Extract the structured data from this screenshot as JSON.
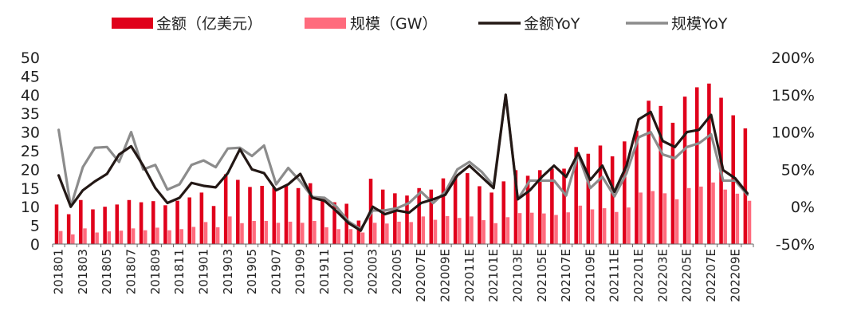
{
  "chart_data": {
    "type": "bar",
    "legend": [
      {
        "label": "金额（亿美元）",
        "kind": "bar",
        "color": "#e0001b"
      },
      {
        "label": "规模（GW）",
        "kind": "bar",
        "color": "#ff6b7d"
      },
      {
        "label": "金额YoY",
        "kind": "line",
        "color": "#231815"
      },
      {
        "label": "规模YoY",
        "kind": "line",
        "color": "#8c8c8c"
      }
    ],
    "legend_position": "top",
    "left_axis": {
      "ylim": [
        0,
        50
      ],
      "ticks": [
        "0",
        "5",
        "10",
        "15",
        "20",
        "25",
        "30",
        "35",
        "40",
        "45",
        "50"
      ]
    },
    "right_axis": {
      "ylim": [
        -50,
        200
      ],
      "ticks": [
        "-50%",
        "0%",
        "50%",
        "100%",
        "150%",
        "200%"
      ]
    },
    "x_tick_labels": [
      "201801",
      "201803",
      "201805",
      "201807",
      "201809",
      "201811",
      "201901",
      "201903",
      "201905",
      "201907",
      "201909",
      "201911",
      "202001",
      "202003",
      "202005",
      "202007E",
      "202009E",
      "202011E",
      "202101E",
      "202103E",
      "202105E",
      "202107E",
      "202109E",
      "202111E",
      "202201E",
      "202203E",
      "202205E",
      "202207E",
      "202209E"
    ],
    "categories": [
      "201801",
      "201802",
      "201803",
      "201804",
      "201805",
      "201806",
      "201807",
      "201808",
      "201809",
      "201810",
      "201811",
      "201812",
      "201901",
      "201902",
      "201903",
      "201904",
      "201905",
      "201906",
      "201907",
      "201908",
      "201909",
      "201910",
      "201911",
      "201912",
      "202001",
      "202002",
      "202003",
      "202004",
      "202005",
      "202006",
      "202007E",
      "202008E",
      "202009E",
      "202010E",
      "202011E",
      "202012E",
      "202101E",
      "202102E",
      "202103E",
      "202104E",
      "202105E",
      "202106E",
      "202107E",
      "202108E",
      "202109E",
      "202110E",
      "202111E",
      "202112E",
      "202201E",
      "202202E",
      "202203E",
      "202204E",
      "202205E",
      "202206E",
      "202207E",
      "202208E",
      "202209E",
      "202210E"
    ],
    "series": [
      {
        "name": "金额（亿美元）",
        "axis": "left",
        "values": [
          10.6,
          8,
          11.8,
          9.3,
          10,
          10.6,
          11.8,
          11.2,
          11.5,
          10.4,
          11.6,
          12.5,
          13.8,
          10.2,
          18.7,
          17.2,
          15.3,
          15.6,
          15.2,
          15.8,
          15,
          16.3,
          12.5,
          11.2,
          10.8,
          6.3,
          17.5,
          14.6,
          13.6,
          13,
          15,
          14.6,
          17.6,
          18.2,
          19,
          15.5,
          13.8,
          16.8,
          19.8,
          18.3,
          19.8,
          20.2,
          20.2,
          26,
          24.2,
          26.4,
          23.5,
          27.5,
          30.4,
          38.4,
          37,
          32.5,
          39.5,
          42,
          43,
          39.2,
          34.5,
          31
        ]
      },
      {
        "name": "规模（GW）",
        "axis": "left",
        "values": [
          3.5,
          2.6,
          4.2,
          3.1,
          3.4,
          3.6,
          4.2,
          3.7,
          4.4,
          3.7,
          4,
          4.6,
          5.9,
          4.5,
          7.4,
          5.6,
          6.2,
          6.2,
          5.7,
          6,
          5.7,
          6.2,
          4.5,
          4,
          4,
          3.1,
          5.7,
          5.5,
          6,
          5.9,
          7.4,
          6.5,
          7.5,
          7,
          7.4,
          6.4,
          5.6,
          7.2,
          8.3,
          8.4,
          8.2,
          7.8,
          8.5,
          10.3,
          9.3,
          9.6,
          8.6,
          9.8,
          13.8,
          14.2,
          13.6,
          12,
          15,
          15.4,
          16.5,
          14.6,
          13.5,
          11.6
        ]
      },
      {
        "name": "金额YoY",
        "axis": "right",
        "values": [
          42,
          0,
          22,
          34,
          44,
          70,
          81,
          55,
          25,
          5,
          12,
          32,
          28,
          26,
          45,
          77,
          50,
          45,
          22,
          30,
          44,
          12,
          8,
          -6,
          -22,
          -32,
          0,
          -10,
          -5,
          -8,
          5,
          10,
          16,
          42,
          55,
          40,
          25,
          150,
          10,
          22,
          40,
          55,
          40,
          72,
          36,
          55,
          20,
          55,
          117,
          127,
          88,
          80,
          100,
          103,
          123,
          49,
          38,
          18
        ]
      },
      {
        "name": "规模YoY",
        "axis": "right",
        "values": [
          103,
          0,
          53,
          79,
          80,
          60,
          100,
          50,
          56,
          23,
          30,
          56,
          62,
          53,
          78,
          79,
          68,
          82,
          30,
          52,
          34,
          13,
          12,
          0,
          -20,
          -30,
          -5,
          -5,
          -2,
          5,
          20,
          5,
          20,
          50,
          60,
          47,
          28,
          150,
          10,
          35,
          35,
          35,
          15,
          70,
          25,
          40,
          14,
          45,
          93,
          100,
          70,
          65,
          80,
          85,
          97,
          35,
          35,
          16
        ]
      }
    ]
  }
}
